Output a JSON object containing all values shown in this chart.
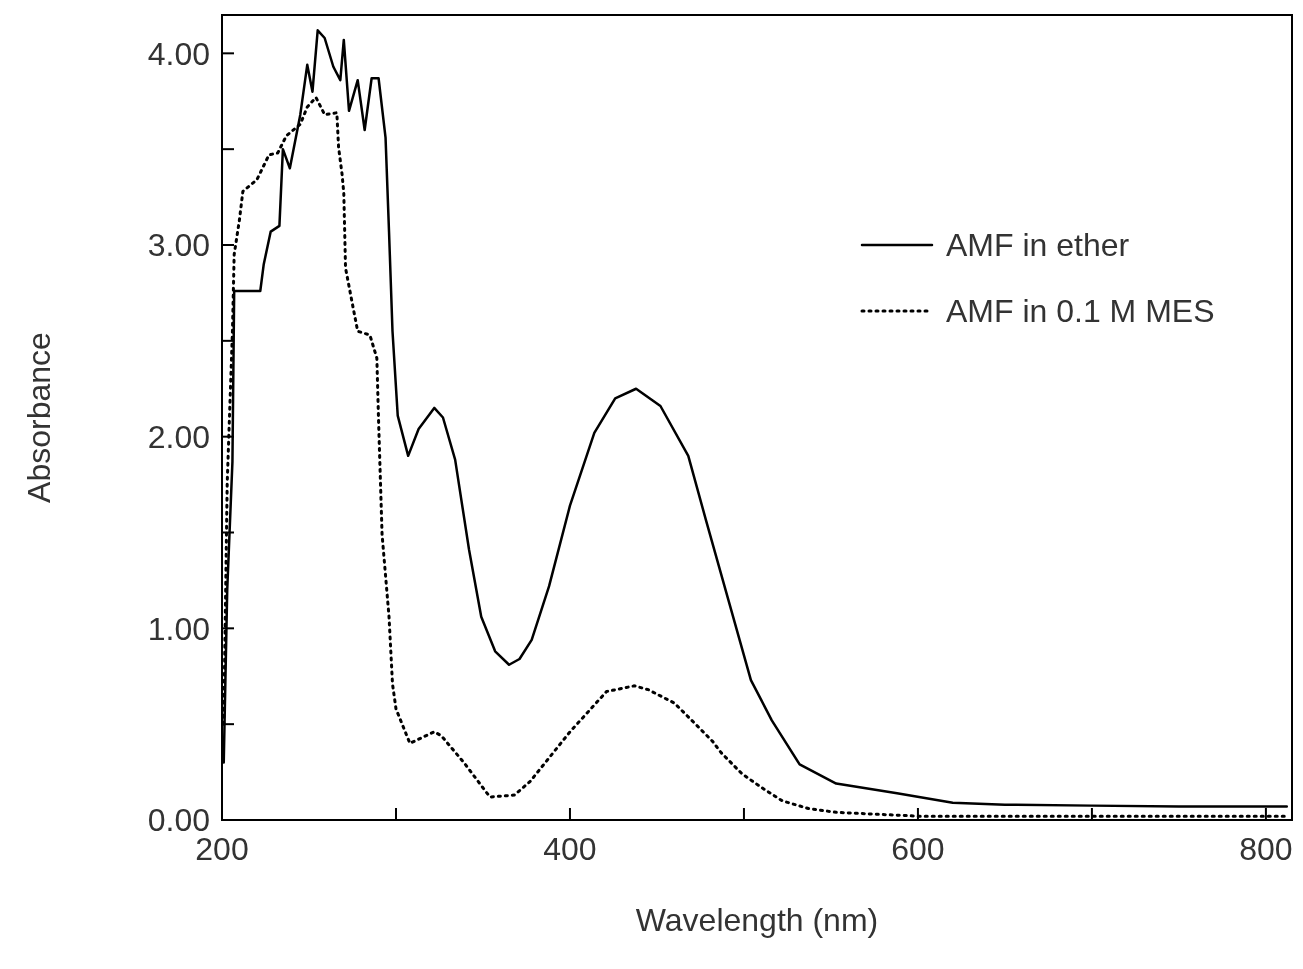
{
  "chart_data": {
    "type": "line",
    "xlabel": "Wavelength (nm)",
    "ylabel": "Absorbance",
    "xlim": [
      200,
      815
    ],
    "ylim": [
      0,
      4.2
    ],
    "xticks": [
      200,
      {
        "value": 300,
        "label": null
      },
      400,
      {
        "value": 500,
        "label": null
      },
      600,
      {
        "value": 700,
        "label": null
      },
      800
    ],
    "yticks": [
      {
        "value": 0,
        "label": "0.00"
      },
      {
        "value": 0.5,
        "label": null
      },
      {
        "value": 1,
        "label": "1.00"
      },
      {
        "value": 1.5,
        "label": null
      },
      {
        "value": 2,
        "label": "2.00"
      },
      {
        "value": 2.5,
        "label": null
      },
      {
        "value": 3,
        "label": "3.00"
      },
      {
        "value": 3.5,
        "label": null
      },
      {
        "value": 4,
        "label": "4.00"
      }
    ],
    "legend": "top right",
    "series": [
      {
        "name": "AMF in ether",
        "color": "#000000",
        "line_style": "solid",
        "x": [
          201,
          203,
          206,
          207,
          210,
          216,
          222,
          224,
          228,
          233,
          235,
          239,
          245,
          249,
          252,
          255,
          259,
          264,
          268,
          270,
          273,
          278,
          282,
          286,
          290,
          294,
          296,
          298,
          301,
          307,
          313,
          322,
          327,
          334,
          342,
          349,
          357,
          365,
          371,
          378,
          388,
          400,
          414,
          426,
          438,
          452,
          468,
          478,
          491,
          504,
          516,
          532,
          553,
          588,
          620,
          650,
          700,
          750,
          800,
          812
        ],
        "values": [
          0.3,
          1.2,
          1.87,
          2.76,
          2.76,
          2.76,
          2.76,
          2.9,
          3.07,
          3.1,
          3.5,
          3.4,
          3.68,
          3.94,
          3.8,
          4.12,
          4.08,
          3.93,
          3.86,
          4.07,
          3.7,
          3.86,
          3.6,
          3.87,
          3.87,
          3.56,
          3.07,
          2.55,
          2.11,
          1.9,
          2.04,
          2.15,
          2.1,
          1.88,
          1.41,
          1.06,
          0.88,
          0.81,
          0.84,
          0.94,
          1.22,
          1.64,
          2.02,
          2.2,
          2.25,
          2.16,
          1.9,
          1.57,
          1.15,
          0.73,
          0.52,
          0.29,
          0.19,
          0.14,
          0.09,
          0.08,
          0.075,
          0.07,
          0.07,
          0.07
        ]
      },
      {
        "name": "AMF in 0.1 M MES",
        "color": "#000000",
        "line_style": "dotted",
        "x": [
          201,
          203,
          206,
          207,
          210,
          212,
          220,
          227,
          232,
          237,
          245,
          249,
          254,
          259,
          266,
          267,
          269,
          270,
          271,
          275,
          278,
          285,
          289,
          290,
          292,
          296,
          298,
          300,
          308,
          322,
          326,
          339,
          354,
          368,
          377,
          400,
          421,
          437,
          445,
          460,
          470,
          482,
          487,
          499,
          510,
          522,
          537,
          553,
          600,
          700,
          812
        ],
        "values": [
          0.5,
          1.76,
          2.55,
          2.95,
          3.13,
          3.28,
          3.34,
          3.47,
          3.48,
          3.57,
          3.63,
          3.72,
          3.77,
          3.68,
          3.69,
          3.51,
          3.37,
          3.27,
          2.88,
          2.69,
          2.55,
          2.53,
          2.41,
          2.08,
          1.49,
          1.06,
          0.71,
          0.58,
          0.4,
          0.46,
          0.44,
          0.3,
          0.12,
          0.13,
          0.2,
          0.46,
          0.67,
          0.7,
          0.68,
          0.61,
          0.52,
          0.41,
          0.35,
          0.24,
          0.17,
          0.1,
          0.06,
          0.04,
          0.02,
          0.02,
          0.02
        ]
      }
    ]
  }
}
